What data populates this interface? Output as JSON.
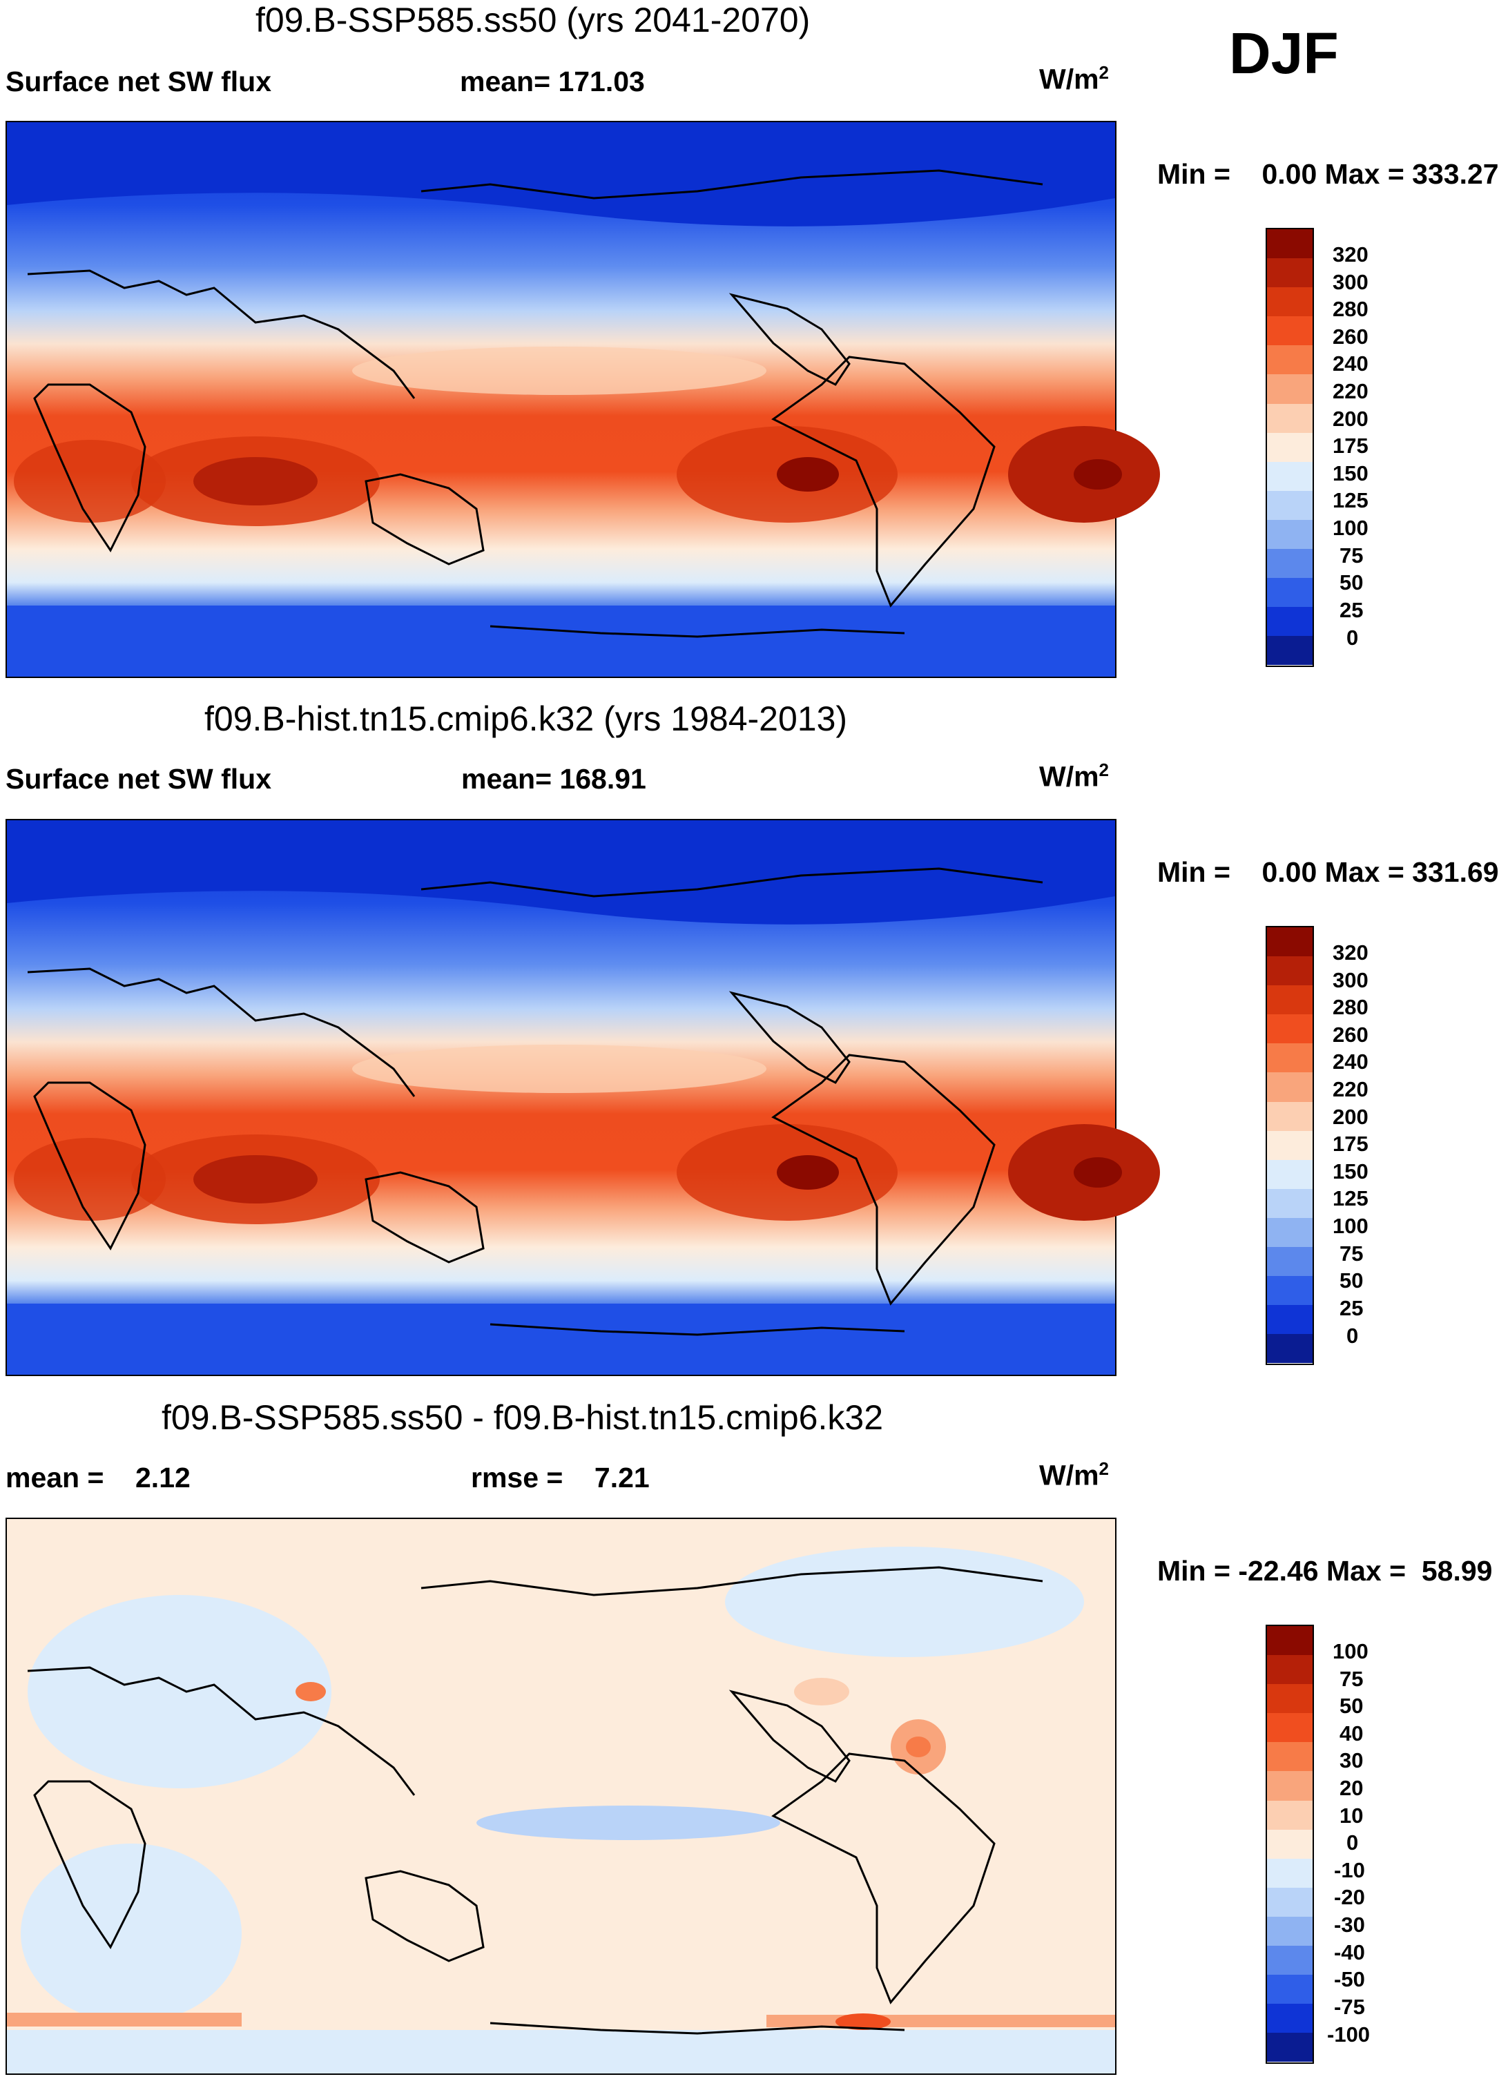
{
  "season": "DJF",
  "panels": [
    {
      "id": "future",
      "title": "f09.B-SSP585.ss50 (yrs 2041-2070)",
      "left_label": "Surface net SW flux",
      "center_label": "mean= 171.03",
      "units_base": "W/m",
      "units_exp": "2",
      "minmax": "Min =    0.00 Max = 333.27",
      "colorbar": {
        "labels": [
          "320",
          "300",
          "280",
          "260",
          "240",
          "220",
          "200",
          "175",
          "150",
          "125",
          "100",
          "75",
          "50",
          "25",
          "0"
        ],
        "colors": [
          "#8b0a00",
          "#b52008",
          "#d9380f",
          "#f04e1f",
          "#f77b48",
          "#f9a57c",
          "#fccfb2",
          "#fdecdc",
          "#dcecfb",
          "#b9d3f8",
          "#8fb3f2",
          "#5c88ec",
          "#2f5ee8",
          "#0f34d6",
          "#0a1c92"
        ]
      }
    },
    {
      "id": "historical",
      "title": "f09.B-hist.tn15.cmip6.k32 (yrs 1984-2013)",
      "left_label": "Surface net SW flux",
      "center_label": "mean= 168.91",
      "units_base": "W/m",
      "units_exp": "2",
      "minmax": "Min =    0.00 Max = 331.69",
      "colorbar": {
        "labels": [
          "320",
          "300",
          "280",
          "260",
          "240",
          "220",
          "200",
          "175",
          "150",
          "125",
          "100",
          "75",
          "50",
          "25",
          "0"
        ],
        "colors": [
          "#8b0a00",
          "#b52008",
          "#d9380f",
          "#f04e1f",
          "#f77b48",
          "#f9a57c",
          "#fccfb2",
          "#fdecdc",
          "#dcecfb",
          "#b9d3f8",
          "#8fb3f2",
          "#5c88ec",
          "#2f5ee8",
          "#0f34d6",
          "#0a1c92"
        ]
      }
    },
    {
      "id": "difference",
      "title": "f09.B-SSP585.ss50 - f09.B-hist.tn15.cmip6.k32",
      "left_label": "mean =    2.12",
      "center_label": "rmse =    7.21",
      "units_base": "W/m",
      "units_exp": "2",
      "minmax": "Min = -22.46 Max =  58.99",
      "colorbar": {
        "labels": [
          "100",
          "75",
          "50",
          "40",
          "30",
          "20",
          "10",
          "0",
          "-10",
          "-20",
          "-30",
          "-40",
          "-50",
          "-75",
          "-100"
        ],
        "colors": [
          "#8b0a00",
          "#b52008",
          "#d9380f",
          "#f04e1f",
          "#f77b48",
          "#f9a57c",
          "#fccfb2",
          "#fdecdc",
          "#dcecfb",
          "#b9d3f8",
          "#8fb3f2",
          "#5c88ec",
          "#2f5ee8",
          "#0f34d6",
          "#0a1c92"
        ]
      }
    }
  ]
}
